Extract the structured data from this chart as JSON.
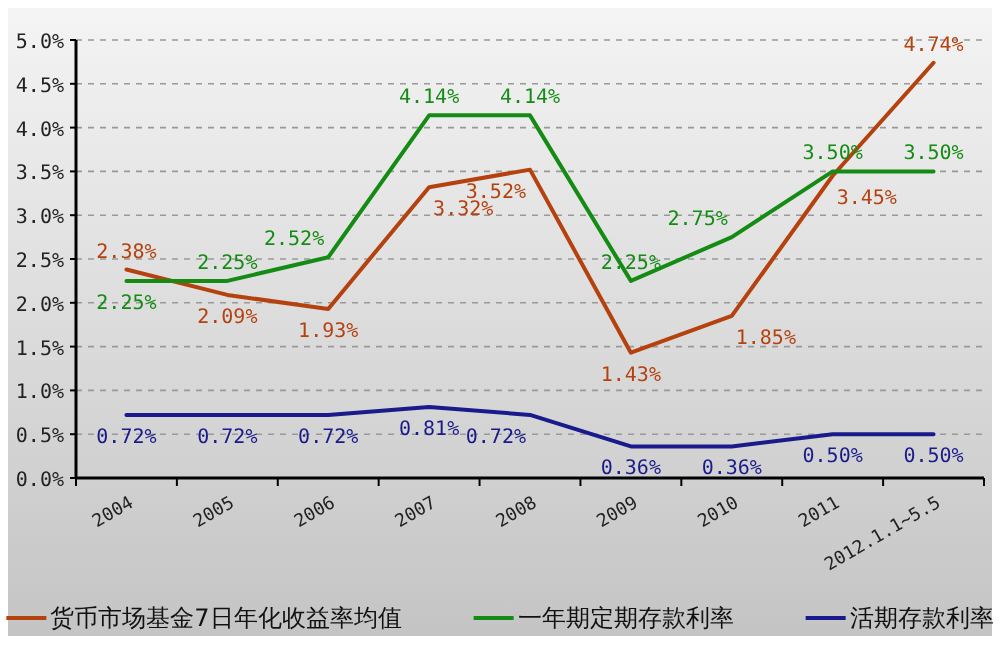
{
  "chart_data": {
    "type": "line",
    "categories": [
      "2004",
      "2005",
      "2006",
      "2007",
      "2008",
      "2009",
      "2010",
      "2011",
      "2012.1.1~5.5"
    ],
    "series": [
      {
        "name": "货币市场基金7日年化收益率均值",
        "color": "#b5410f",
        "values": [
          2.38,
          2.09,
          1.93,
          3.32,
          3.52,
          1.43,
          1.85,
          3.45,
          4.74
        ],
        "value_labels": [
          "2.38%",
          "2.09%",
          "1.93%",
          "3.32%",
          "3.52%",
          "1.43%",
          "1.85%",
          "3.45%",
          "4.74%"
        ]
      },
      {
        "name": "一年期定期存款利率",
        "color": "#148c14",
        "values": [
          2.25,
          2.25,
          2.52,
          4.14,
          4.14,
          2.25,
          2.75,
          3.5,
          3.5
        ],
        "value_labels": [
          "2.25%",
          "2.25%",
          "2.52%",
          "4.14%",
          "4.14%",
          "2.25%",
          "2.75%",
          "3.50%",
          "3.50%"
        ]
      },
      {
        "name": "活期存款利率",
        "color": "#1a1a8c",
        "values": [
          0.72,
          0.72,
          0.72,
          0.81,
          0.72,
          0.36,
          0.36,
          0.5,
          0.5
        ],
        "value_labels": [
          "0.72%",
          "0.72%",
          "0.72%",
          "0.81%",
          "0.72%",
          "0.36%",
          "0.36%",
          "0.50%",
          "0.50%"
        ]
      }
    ],
    "ylim": [
      0,
      5
    ],
    "yticks": [
      {
        "value": 0,
        "label": "0.0%"
      },
      {
        "value": 0.5,
        "label": "0.5%"
      },
      {
        "value": 1,
        "label": "1.0%"
      },
      {
        "value": 1.5,
        "label": "1.5%"
      },
      {
        "value": 2,
        "label": "2.0%"
      },
      {
        "value": 2.5,
        "label": "2.5%"
      },
      {
        "value": 3,
        "label": "3.0%"
      },
      {
        "value": 3.5,
        "label": "3.5%"
      },
      {
        "value": 4,
        "label": "4.0%"
      },
      {
        "value": 4.5,
        "label": "4.5%"
      },
      {
        "value": 5,
        "label": "5.0%"
      }
    ],
    "grid": "y",
    "legend": "bottom",
    "marker": "none",
    "line_style": "solid"
  }
}
